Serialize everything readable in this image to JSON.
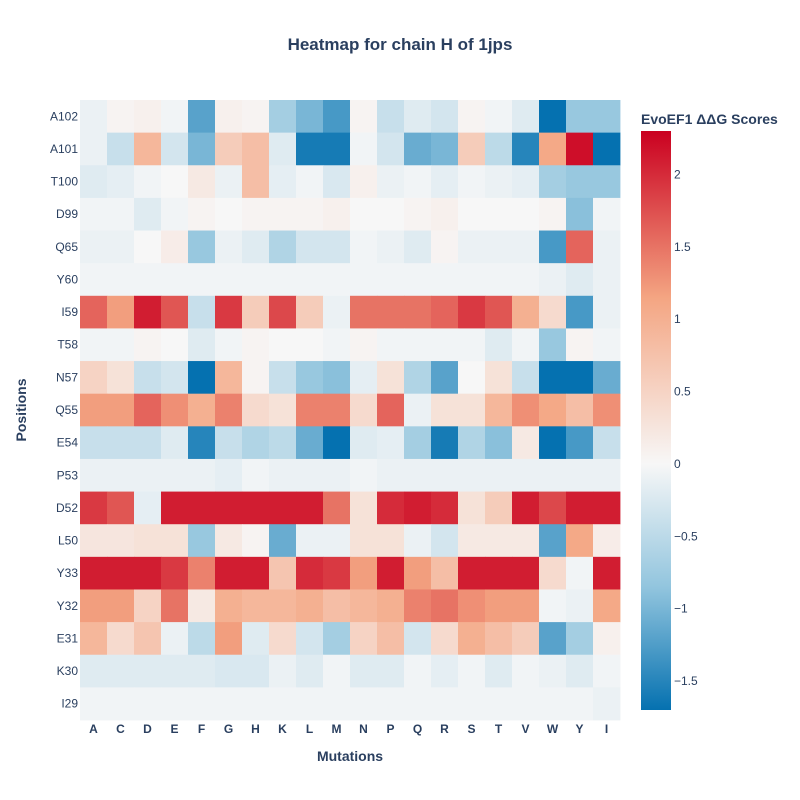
{
  "chart_data": {
    "type": "heatmap",
    "title": "Heatmap for chain H of 1jps",
    "xlabel": "Mutations",
    "ylabel": "Positions",
    "colorbar_title": "EvoEF1 ΔΔG Scores",
    "colorbar_ticks": [
      2,
      1.5,
      1,
      0.5,
      0,
      -0.5,
      -1,
      -1.5
    ],
    "colorbar_tick_labels": [
      "2",
      "1.5",
      "1",
      "0.5",
      "0",
      "−0.5",
      "−1",
      "−1.5"
    ],
    "zrange": [
      -1.7,
      2.3
    ],
    "colorscale": [
      "#0571b0",
      "#92c5de",
      "#f7f7f7",
      "#f4a582",
      "#ca0020"
    ],
    "x": [
      "A",
      "C",
      "D",
      "E",
      "F",
      "G",
      "H",
      "K",
      "L",
      "M",
      "N",
      "P",
      "Q",
      "R",
      "S",
      "T",
      "V",
      "W",
      "Y",
      "I"
    ],
    "y": [
      "A102",
      "A101",
      "T100",
      "D99",
      "Q65",
      "Y60",
      "I59",
      "T58",
      "N57",
      "Q55",
      "E54",
      "P53",
      "D52",
      "L50",
      "Y33",
      "Y32",
      "E31",
      "K30",
      "I29"
    ],
    "z": [
      [
        -0.1,
        0.05,
        0.1,
        -0.05,
        -1.2,
        0.1,
        0.05,
        -0.7,
        -1.0,
        -1.3,
        0.05,
        -0.4,
        -0.2,
        -0.3,
        0.05,
        -0.05,
        -0.2,
        -1.7,
        -0.8,
        -0.8
      ],
      [
        -0.1,
        -0.4,
        0.9,
        -0.3,
        -1.0,
        0.6,
        0.8,
        -0.2,
        -1.6,
        -1.6,
        -0.05,
        -0.3,
        -1.1,
        -1.0,
        0.6,
        -0.5,
        -1.5,
        1.1,
        2.2,
        -1.7
      ],
      [
        -0.2,
        -0.15,
        -0.05,
        0.0,
        0.2,
        -0.1,
        0.8,
        -0.15,
        -0.05,
        -0.25,
        0.1,
        -0.1,
        -0.05,
        -0.15,
        -0.05,
        -0.1,
        -0.15,
        -0.7,
        -0.8,
        -0.8
      ],
      [
        -0.05,
        -0.05,
        -0.2,
        -0.05,
        0.05,
        0.0,
        0.05,
        0.05,
        0.05,
        0.1,
        0.0,
        0.0,
        0.05,
        0.1,
        0.0,
        0.0,
        0.0,
        0.05,
        -0.9,
        -0.05
      ],
      [
        -0.1,
        -0.1,
        0.0,
        0.15,
        -0.8,
        -0.1,
        -0.2,
        -0.6,
        -0.3,
        -0.3,
        -0.05,
        -0.1,
        -0.2,
        0.05,
        -0.1,
        -0.1,
        -0.1,
        -1.3,
        1.6,
        -0.1
      ],
      [
        -0.05,
        -0.05,
        -0.05,
        -0.05,
        -0.05,
        -0.05,
        -0.05,
        -0.05,
        -0.05,
        -0.05,
        -0.05,
        -0.05,
        -0.05,
        -0.05,
        -0.05,
        -0.05,
        -0.05,
        -0.1,
        -0.2,
        -0.1
      ],
      [
        1.6,
        1.2,
        2.1,
        1.7,
        -0.4,
        1.9,
        0.6,
        1.8,
        0.6,
        -0.1,
        1.5,
        1.5,
        1.5,
        1.6,
        1.9,
        1.7,
        1.0,
        0.4,
        -1.3,
        -0.1
      ],
      [
        -0.05,
        -0.05,
        0.05,
        0.0,
        -0.2,
        -0.05,
        0.05,
        0.0,
        0.0,
        -0.05,
        0.05,
        -0.05,
        -0.05,
        -0.05,
        -0.05,
        -0.2,
        -0.05,
        -0.8,
        0.05,
        -0.05
      ],
      [
        0.5,
        0.3,
        -0.4,
        -0.3,
        -1.7,
        0.9,
        0.05,
        -0.4,
        -0.8,
        -0.9,
        -0.15,
        0.3,
        -0.6,
        -1.2,
        0.0,
        0.3,
        -0.4,
        -1.7,
        -1.7,
        -1.1
      ],
      [
        1.2,
        1.2,
        1.6,
        1.3,
        1.0,
        1.4,
        0.4,
        0.3,
        1.4,
        1.4,
        0.4,
        1.6,
        -0.1,
        0.3,
        0.3,
        0.9,
        1.3,
        1.1,
        0.8,
        1.3
      ],
      [
        -0.4,
        -0.4,
        -0.4,
        -0.2,
        -1.5,
        -0.4,
        -0.6,
        -0.5,
        -1.1,
        -1.7,
        -0.2,
        -0.15,
        -0.7,
        -1.6,
        -0.6,
        -0.9,
        0.2,
        -1.7,
        -1.3,
        -0.4
      ],
      [
        -0.1,
        -0.1,
        -0.1,
        -0.1,
        -0.1,
        -0.15,
        -0.05,
        -0.1,
        -0.1,
        -0.1,
        -0.05,
        -0.1,
        -0.1,
        -0.1,
        -0.1,
        -0.1,
        -0.1,
        -0.1,
        -0.1,
        -0.1
      ],
      [
        1.9,
        1.7,
        -0.15,
        2.1,
        2.1,
        2.1,
        2.1,
        2.1,
        2.1,
        1.5,
        0.3,
        2.0,
        2.1,
        2.0,
        0.3,
        0.6,
        2.1,
        1.8,
        2.1,
        2.1
      ],
      [
        0.25,
        0.25,
        0.3,
        0.3,
        -0.8,
        0.2,
        0.05,
        -1.1,
        -0.1,
        -0.1,
        0.3,
        0.3,
        -0.1,
        -0.3,
        0.2,
        0.2,
        0.2,
        -1.2,
        1.1,
        0.15
      ],
      [
        2.1,
        2.1,
        2.1,
        1.9,
        1.4,
        2.1,
        2.1,
        0.7,
        2.0,
        1.9,
        1.2,
        2.1,
        1.2,
        0.8,
        2.1,
        2.1,
        2.1,
        0.4,
        -0.05,
        2.1
      ],
      [
        1.2,
        1.2,
        0.5,
        1.5,
        0.2,
        1.0,
        0.9,
        0.9,
        1.0,
        0.8,
        0.9,
        1.0,
        1.4,
        1.5,
        1.3,
        1.2,
        1.2,
        -0.05,
        -0.1,
        1.1
      ],
      [
        0.9,
        0.4,
        0.7,
        -0.1,
        -0.5,
        1.2,
        -0.2,
        0.4,
        -0.3,
        -0.7,
        0.5,
        0.8,
        -0.3,
        0.4,
        1.0,
        0.8,
        0.6,
        -1.2,
        -0.7,
        0.1
      ],
      [
        -0.2,
        -0.2,
        -0.2,
        -0.2,
        -0.2,
        -0.25,
        -0.25,
        -0.1,
        -0.2,
        -0.05,
        -0.2,
        -0.2,
        -0.05,
        -0.15,
        -0.05,
        -0.2,
        -0.05,
        -0.1,
        -0.2,
        -0.05
      ],
      [
        -0.05,
        -0.05,
        -0.05,
        -0.05,
        -0.05,
        -0.05,
        -0.05,
        -0.05,
        -0.05,
        -0.05,
        -0.05,
        -0.05,
        -0.05,
        -0.05,
        -0.05,
        -0.05,
        -0.05,
        -0.05,
        -0.05,
        -0.1
      ]
    ]
  }
}
